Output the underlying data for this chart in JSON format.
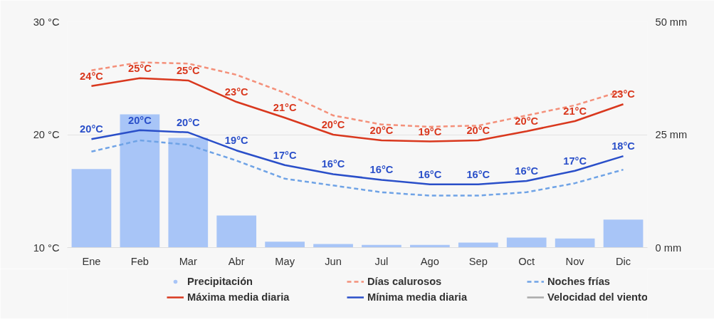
{
  "chart_data": {
    "type": "line",
    "categories": [
      "Ene",
      "Feb",
      "Mar",
      "Abr",
      "May",
      "Jun",
      "Jul",
      "Ago",
      "Sep",
      "Oct",
      "Nov",
      "Dic"
    ],
    "ylim": [
      10,
      30
    ],
    "yticks": [
      {
        "value": 10,
        "label": "10 °C"
      },
      {
        "value": 20,
        "label": "20 °C"
      },
      {
        "value": 30,
        "label": "30 °C"
      }
    ],
    "y2lim": [
      0,
      50
    ],
    "y2ticks": [
      {
        "value": 0,
        "label": "0 mm"
      },
      {
        "value": 25,
        "label": "25 mm"
      },
      {
        "value": 50,
        "label": "50 mm"
      }
    ],
    "grid": "y",
    "legend": "bottom",
    "series": [
      {
        "name": "Precipitación",
        "type": "bar",
        "axis": "y2",
        "color": "#a8c5f7",
        "values": [
          17.4,
          29.5,
          24.3,
          7.1,
          1.3,
          0.8,
          0.6,
          0.6,
          1.1,
          2.2,
          2.0,
          6.2
        ]
      },
      {
        "name": "Días calurosos",
        "line_style": "dashed",
        "color": "#f4907a",
        "values": [
          25.7,
          26.4,
          26.3,
          25.3,
          23.7,
          21.7,
          20.9,
          20.7,
          20.8,
          21.7,
          22.6,
          23.9
        ]
      },
      {
        "name": "Noches frías",
        "line_style": "dashed",
        "color": "#6fa3e6",
        "values": [
          18.5,
          19.5,
          19.1,
          17.7,
          16.1,
          15.5,
          14.9,
          14.6,
          14.6,
          14.9,
          15.7,
          16.9
        ]
      },
      {
        "name": "Máxima media diaria",
        "line_style": "solid",
        "color": "#d9381e",
        "values": [
          24.3,
          25.0,
          24.8,
          22.9,
          21.5,
          20.0,
          19.5,
          19.4,
          19.5,
          20.3,
          21.2,
          22.7
        ],
        "value_labels": [
          "24°C",
          "25°C",
          "25°C",
          "23°C",
          "21°C",
          "20°C",
          "20°C",
          "19°C",
          "20°C",
          "20°C",
          "21°C",
          "23°C"
        ]
      },
      {
        "name": "Mínima media diaria",
        "line_style": "solid",
        "color": "#2a4fc9",
        "values": [
          19.6,
          20.4,
          20.2,
          18.6,
          17.3,
          16.5,
          16.0,
          15.6,
          15.6,
          15.9,
          16.8,
          18.1
        ],
        "value_labels": [
          "20°C",
          "20°C",
          "20°C",
          "19°C",
          "17°C",
          "16°C",
          "16°C",
          "16°C",
          "16°C",
          "16°C",
          "17°C",
          "18°C"
        ]
      },
      {
        "name": "Velocidad del viento",
        "line_style": "solid",
        "color": "#aaaaaa",
        "values": [
          null,
          null,
          null,
          null,
          null,
          null,
          null,
          null,
          null,
          null,
          null,
          null
        ]
      }
    ]
  }
}
